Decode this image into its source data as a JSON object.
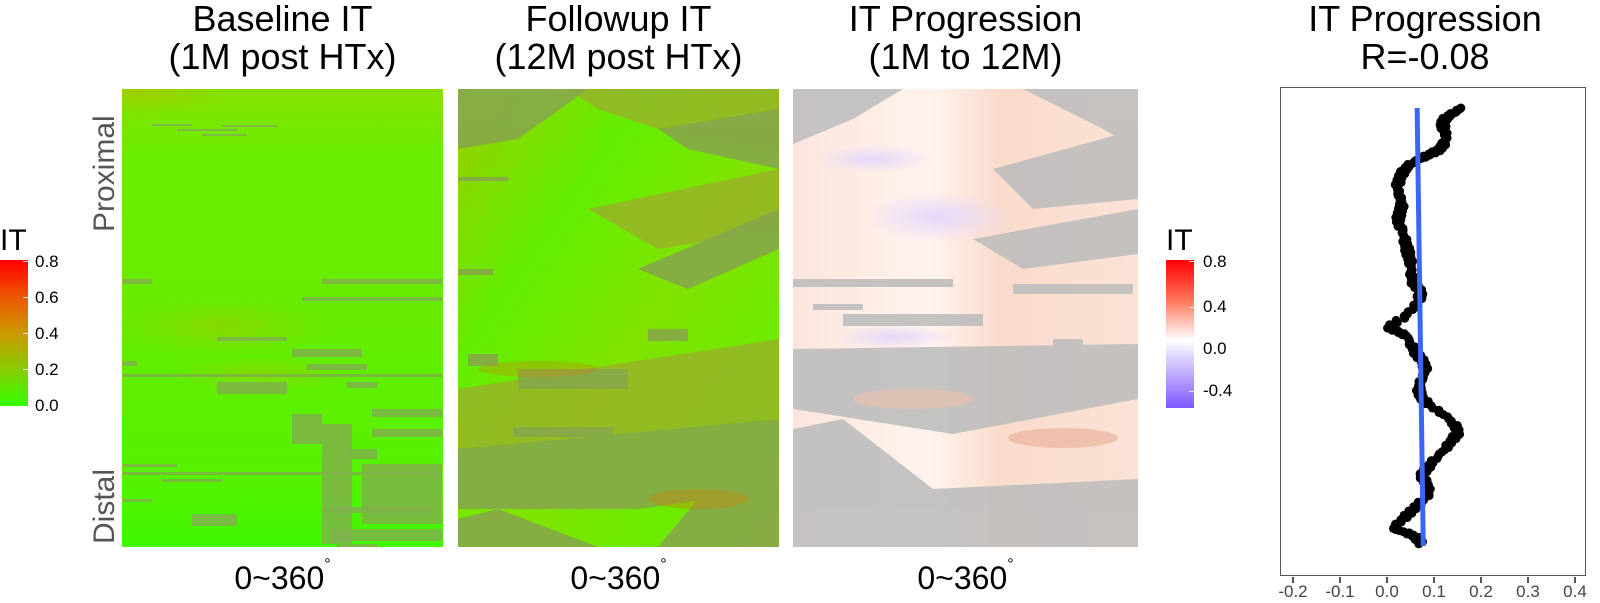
{
  "panels": [
    {
      "title_line1": "Baseline IT",
      "title_line2": "(1M post HTx)",
      "xlabel": "0~360",
      "degree": "°"
    },
    {
      "title_line1": "Followup IT",
      "title_line2": "(12M post HTx)",
      "xlabel": "0~360",
      "degree": "°"
    },
    {
      "title_line1": "IT Progression",
      "title_line2": "(1M to 12M)",
      "xlabel": "0~360",
      "degree": "°"
    },
    {
      "title_line1": "IT Progression",
      "title_line2": "R=-0.08"
    }
  ],
  "yaxis": {
    "top_label": "Proximal",
    "bottom_label": "Distal"
  },
  "legend_left": {
    "title": "IT",
    "ticks": [
      "0.8",
      "0.6",
      "0.4",
      "0.2",
      "0.0"
    ],
    "colors": {
      "high": "#ff0000",
      "mid": "#cc9900",
      "low": "#33ff00"
    }
  },
  "legend_right": {
    "title": "IT",
    "ticks": [
      "0.8",
      "0.4",
      "0.0",
      "-0.4"
    ],
    "colors": {
      "high": "#ff1a1a",
      "mid": "#ffffff",
      "low": "#8a5cff"
    }
  },
  "scatter": {
    "xticks": [
      "-0.2",
      "-0.1",
      "0.0",
      "0.1",
      "0.2",
      "0.3",
      "0.4"
    ],
    "fit_color": "#3b66f5",
    "point_color": "#000000"
  },
  "chart_data": [
    {
      "type": "heatmap",
      "title": "Baseline IT (1M post HTx)",
      "xlabel": "0~360°",
      "ylabel": "Proximal → Distal",
      "colorscale": {
        "name": "IT",
        "range": [
          0.0,
          0.8
        ],
        "ticks": [
          0.0,
          0.2,
          0.4,
          0.6,
          0.8
        ],
        "colors": [
          "#33ff00",
          "#cc9900",
          "#ff0000"
        ]
      },
      "description": "Mostly low IT (~0.0–0.15, bright green) with grey missing-data streaks; slightly elevated (~0.2) near top-left and mid-bands"
    },
    {
      "type": "heatmap",
      "title": "Followup IT (12M post HTx)",
      "xlabel": "0~360°",
      "ylabel": "Proximal → Distal",
      "colorscale": {
        "name": "IT",
        "range": [
          0.0,
          0.8
        ],
        "ticks": [
          0.0,
          0.2,
          0.4,
          0.6,
          0.8
        ],
        "colors": [
          "#33ff00",
          "#cc9900",
          "#ff0000"
        ]
      },
      "description": "Higher IT than baseline (~0.1–0.35), diagonal bands of elevated IT with grey missing-data regions"
    },
    {
      "type": "heatmap",
      "title": "IT Progression (1M to 12M)",
      "xlabel": "0~360°",
      "ylabel": "Proximal → Distal",
      "colorscale": {
        "name": "IT",
        "range": [
          -0.5,
          0.8
        ],
        "ticks": [
          -0.4,
          0.0,
          0.4,
          0.8
        ],
        "colors": [
          "#8a5cff",
          "#ffffff",
          "#ff1a1a"
        ]
      },
      "description": "Mostly small positive change (~0.0–0.2, light salmon) with small negative patches (light purple) and grey missing regions"
    },
    {
      "type": "scatter",
      "title": "IT Progression R=-0.08",
      "xlabel": "",
      "ylabel": "",
      "xlim": [
        -0.23,
        0.43
      ],
      "xticks": [
        -0.2,
        -0.1,
        0.0,
        0.1,
        0.2,
        0.3,
        0.4
      ],
      "note": "Per-slice mean IT progression (x) vs. position along vessel (y, proximal top to distal bottom, 0=top,1=bottom)",
      "points": [
        {
          "x": 0.155,
          "y": 0.0
        },
        {
          "x": 0.14,
          "y": 0.01
        },
        {
          "x": 0.125,
          "y": 0.02
        },
        {
          "x": 0.115,
          "y": 0.035
        },
        {
          "x": 0.12,
          "y": 0.05
        },
        {
          "x": 0.125,
          "y": 0.065
        },
        {
          "x": 0.12,
          "y": 0.08
        },
        {
          "x": 0.11,
          "y": 0.095
        },
        {
          "x": 0.09,
          "y": 0.105
        },
        {
          "x": 0.07,
          "y": 0.115
        },
        {
          "x": 0.05,
          "y": 0.125
        },
        {
          "x": 0.035,
          "y": 0.14
        },
        {
          "x": 0.025,
          "y": 0.16
        },
        {
          "x": 0.02,
          "y": 0.18
        },
        {
          "x": 0.025,
          "y": 0.2
        },
        {
          "x": 0.03,
          "y": 0.22
        },
        {
          "x": 0.025,
          "y": 0.24
        },
        {
          "x": 0.02,
          "y": 0.26
        },
        {
          "x": 0.03,
          "y": 0.28
        },
        {
          "x": 0.035,
          "y": 0.3
        },
        {
          "x": 0.04,
          "y": 0.32
        },
        {
          "x": 0.045,
          "y": 0.34
        },
        {
          "x": 0.05,
          "y": 0.36
        },
        {
          "x": 0.05,
          "y": 0.38
        },
        {
          "x": 0.055,
          "y": 0.4
        },
        {
          "x": 0.07,
          "y": 0.42
        },
        {
          "x": 0.065,
          "y": 0.44
        },
        {
          "x": 0.05,
          "y": 0.46
        },
        {
          "x": 0.03,
          "y": 0.48
        },
        {
          "x": 0.0,
          "y": 0.5
        },
        {
          "x": 0.02,
          "y": 0.51
        },
        {
          "x": 0.04,
          "y": 0.52
        },
        {
          "x": 0.05,
          "y": 0.54
        },
        {
          "x": 0.06,
          "y": 0.56
        },
        {
          "x": 0.075,
          "y": 0.58
        },
        {
          "x": 0.08,
          "y": 0.6
        },
        {
          "x": 0.07,
          "y": 0.62
        },
        {
          "x": 0.065,
          "y": 0.64
        },
        {
          "x": 0.07,
          "y": 0.66
        },
        {
          "x": 0.09,
          "y": 0.68
        },
        {
          "x": 0.12,
          "y": 0.7
        },
        {
          "x": 0.14,
          "y": 0.72
        },
        {
          "x": 0.15,
          "y": 0.74
        },
        {
          "x": 0.135,
          "y": 0.76
        },
        {
          "x": 0.12,
          "y": 0.78
        },
        {
          "x": 0.1,
          "y": 0.8
        },
        {
          "x": 0.085,
          "y": 0.82
        },
        {
          "x": 0.07,
          "y": 0.84
        },
        {
          "x": 0.085,
          "y": 0.86
        },
        {
          "x": 0.09,
          "y": 0.88
        },
        {
          "x": 0.07,
          "y": 0.9
        },
        {
          "x": 0.05,
          "y": 0.92
        },
        {
          "x": 0.03,
          "y": 0.94
        },
        {
          "x": 0.01,
          "y": 0.96
        },
        {
          "x": 0.04,
          "y": 0.97
        },
        {
          "x": 0.06,
          "y": 0.98
        },
        {
          "x": 0.075,
          "y": 1.0
        }
      ],
      "fit_line": {
        "x_top": 0.062,
        "x_bottom": 0.075,
        "color": "#3b66f5"
      },
      "correlation": -0.08
    }
  ]
}
